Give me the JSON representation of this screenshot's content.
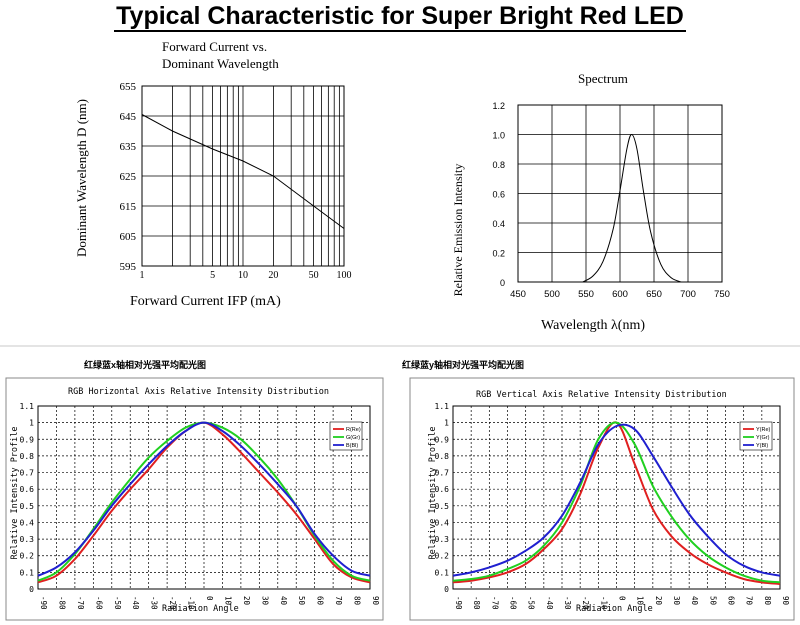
{
  "page_title": "Typical Characteristic for Super Bright Red LED",
  "chart_data": [
    {
      "id": "forward",
      "type": "line",
      "title_lines": [
        "Forward Current vs.",
        "Dominant Wavelength"
      ],
      "xlabel": "Forward Current IFP (mA)",
      "ylabel": "Dominant Wavelength D (nm)",
      "xscale": "log",
      "xlim": [
        1,
        100
      ],
      "ylim": [
        595,
        655
      ],
      "xticks": [
        1,
        5,
        10,
        20,
        50,
        100
      ],
      "yticks": [
        595,
        605,
        615,
        625,
        635,
        645,
        655
      ],
      "grid": true,
      "x": [
        1,
        2,
        5,
        10,
        20,
        50,
        100
      ],
      "y": [
        645.5,
        640,
        634,
        630,
        625,
        615,
        607.5
      ]
    },
    {
      "id": "spectrum",
      "type": "line",
      "title": "Spectrum",
      "xlabel": "Wavelength λ(nm)",
      "ylabel": "Relative Emission Intensity",
      "xlim": [
        450,
        750
      ],
      "ylim": [
        0,
        1.2
      ],
      "xticks": [
        450,
        500,
        550,
        600,
        650,
        700,
        750
      ],
      "yticks": [
        0,
        0.2,
        0.4,
        0.6,
        0.8,
        1.0,
        1.2
      ],
      "ytick_labels": [
        "0",
        "0.2",
        "0.4",
        "0.6",
        "0.8",
        "1.0",
        "1.2"
      ],
      "grid": true,
      "x": [
        545,
        560,
        575,
        590,
        600,
        610,
        617,
        625,
        635,
        645,
        660,
        675,
        690
      ],
      "y": [
        0,
        0.04,
        0.14,
        0.36,
        0.62,
        0.9,
        1.0,
        0.9,
        0.6,
        0.34,
        0.12,
        0.03,
        0
      ]
    },
    {
      "id": "rgb-horizontal",
      "type": "line",
      "caption": "红绿蓝x轴相对光强平均配光图",
      "title": "RGB Horizontal Axis Relative Intensity Distribution",
      "xlabel": "Radiation Angle",
      "ylabel": "Relative Intensity Profile",
      "xlim": [
        -90,
        90
      ],
      "ylim": [
        0,
        1.1
      ],
      "xticks": [
        -90,
        -80,
        -70,
        -60,
        -50,
        -40,
        -30,
        -20,
        -10,
        0,
        10,
        20,
        30,
        40,
        50,
        60,
        70,
        80,
        90
      ],
      "yticks": [
        0,
        0.1,
        0.2,
        0.3,
        0.4,
        0.5,
        0.6,
        0.7,
        0.8,
        0.9,
        1,
        1.1
      ],
      "grid": true,
      "legend": [
        "R(Re)",
        "G(Gr)",
        "B(Bl)"
      ],
      "legend_position": "top-right",
      "x": [
        -90,
        -80,
        -70,
        -60,
        -50,
        -40,
        -30,
        -20,
        -10,
        0,
        10,
        20,
        30,
        40,
        50,
        60,
        70,
        80,
        90
      ],
      "series": [
        {
          "name": "R(Re)",
          "color": "#e02020",
          "values": [
            0.04,
            0.08,
            0.18,
            0.32,
            0.47,
            0.6,
            0.72,
            0.85,
            0.95,
            1.0,
            0.93,
            0.82,
            0.7,
            0.58,
            0.45,
            0.3,
            0.15,
            0.07,
            0.04
          ]
        },
        {
          "name": "G(Gr)",
          "color": "#20d020",
          "values": [
            0.05,
            0.1,
            0.21,
            0.36,
            0.52,
            0.66,
            0.79,
            0.89,
            0.97,
            1.0,
            0.97,
            0.9,
            0.79,
            0.66,
            0.5,
            0.32,
            0.17,
            0.08,
            0.05
          ]
        },
        {
          "name": "B(Bl)",
          "color": "#2020d0",
          "values": [
            0.08,
            0.13,
            0.22,
            0.35,
            0.5,
            0.63,
            0.75,
            0.86,
            0.95,
            1.0,
            0.95,
            0.86,
            0.75,
            0.63,
            0.5,
            0.33,
            0.2,
            0.11,
            0.08
          ]
        }
      ]
    },
    {
      "id": "rgb-vertical",
      "type": "line",
      "caption": "红绿蓝y轴相对光强平均配光图",
      "title": "RGB Vertical Axis Relative Intensity Distribution",
      "xlabel": "Radiation Angle",
      "ylabel": "Relative Intensity Profile",
      "xlim": [
        -90,
        90
      ],
      "ylim": [
        0,
        1.1
      ],
      "xticks": [
        -90,
        -80,
        -70,
        -60,
        -50,
        -40,
        -30,
        -20,
        -10,
        0,
        10,
        20,
        30,
        40,
        50,
        60,
        70,
        80,
        90
      ],
      "yticks": [
        0,
        0.1,
        0.2,
        0.3,
        0.4,
        0.5,
        0.6,
        0.7,
        0.8,
        0.9,
        1,
        1.1
      ],
      "grid": true,
      "legend": [
        "Y(Re)",
        "Y(Gr)",
        "Y(Bl)"
      ],
      "legend_position": "top-right",
      "x": [
        -90,
        -80,
        -70,
        -60,
        -50,
        -40,
        -30,
        -20,
        -10,
        0,
        10,
        20,
        30,
        40,
        50,
        60,
        70,
        80,
        90
      ],
      "series": [
        {
          "name": "Y(Re)",
          "color": "#e02020",
          "values": [
            0.04,
            0.05,
            0.07,
            0.1,
            0.15,
            0.24,
            0.36,
            0.57,
            0.85,
            1.0,
            0.75,
            0.48,
            0.32,
            0.22,
            0.15,
            0.1,
            0.06,
            0.04,
            0.03
          ]
        },
        {
          "name": "Y(Gr)",
          "color": "#20d020",
          "values": [
            0.05,
            0.06,
            0.08,
            0.12,
            0.17,
            0.26,
            0.4,
            0.62,
            0.9,
            1.0,
            0.87,
            0.62,
            0.44,
            0.3,
            0.2,
            0.13,
            0.08,
            0.05,
            0.04
          ]
        },
        {
          "name": "Y(Bl)",
          "color": "#2020d0",
          "values": [
            0.08,
            0.1,
            0.13,
            0.17,
            0.23,
            0.31,
            0.44,
            0.64,
            0.87,
            0.98,
            0.96,
            0.8,
            0.62,
            0.45,
            0.32,
            0.21,
            0.14,
            0.1,
            0.08
          ]
        }
      ]
    }
  ]
}
